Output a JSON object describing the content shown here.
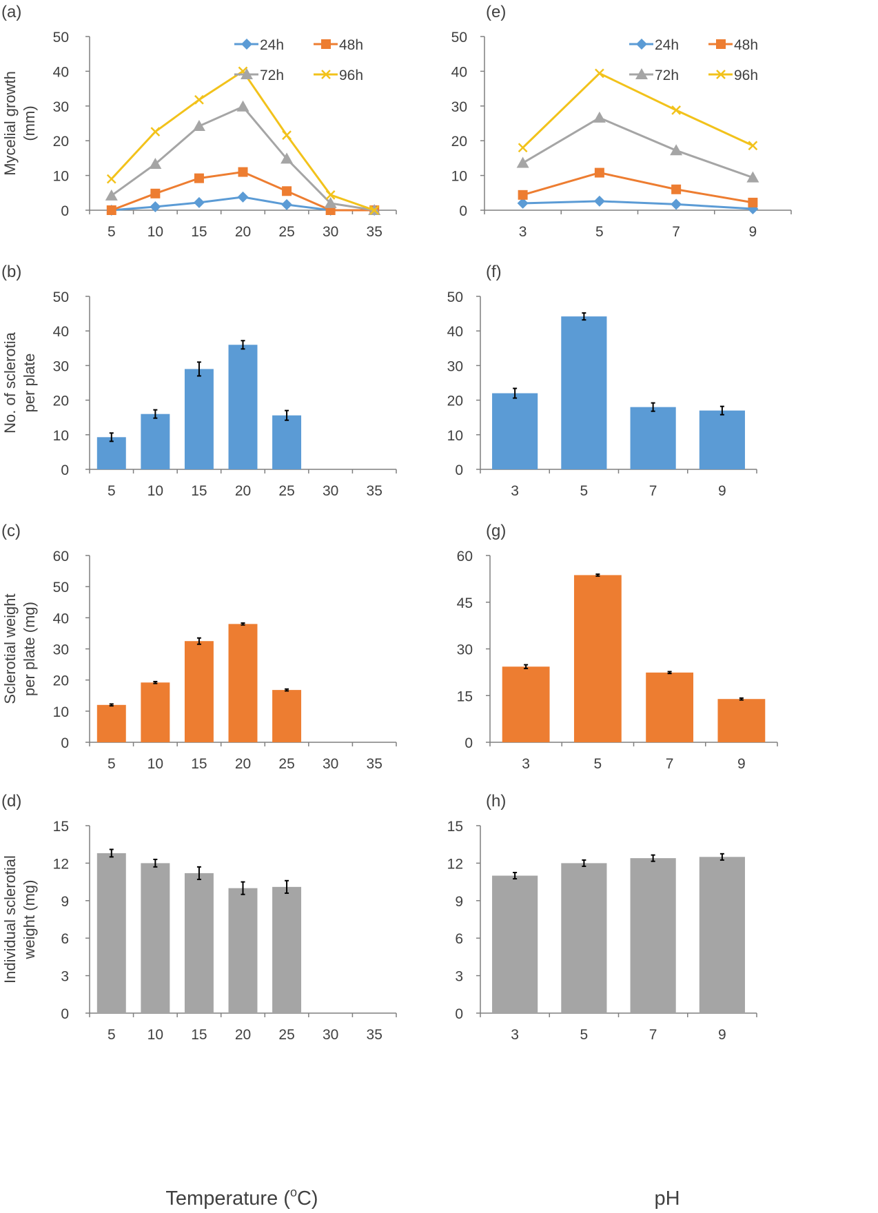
{
  "figure": {
    "xlabel_left": "Temperature (°C)",
    "xlabel_left_main": "Temperature (",
    "xlabel_left_sup": "o",
    "xlabel_left_end": "C)",
    "xlabel_right": "pH"
  },
  "colors": {
    "blue": "#5b9bd5",
    "orange": "#ed7d31",
    "gray": "#a5a5a5",
    "yellow": "#f2c21b",
    "axis": "#7f7f7f",
    "text": "#404040"
  },
  "chart_data": [
    {
      "id": "a",
      "panel_label": "(a)",
      "type": "line",
      "ylabel": [
        "Mycelial growth",
        "(mm)"
      ],
      "categories": [
        "5",
        "10",
        "15",
        "20",
        "25",
        "30",
        "35"
      ],
      "ylim": [
        0,
        50
      ],
      "yticks": [
        0,
        10,
        20,
        30,
        40,
        50
      ],
      "grid": false,
      "legend_placement": "top-right",
      "series": [
        {
          "name": "24h",
          "color": "#5b9bd5",
          "marker": "diamond",
          "values": [
            0,
            1,
            2.2,
            3.8,
            1.6,
            0,
            0
          ]
        },
        {
          "name": "48h",
          "color": "#ed7d31",
          "marker": "square",
          "values": [
            0,
            4.8,
            9.2,
            11,
            5.5,
            0,
            0
          ]
        },
        {
          "name": "72h",
          "color": "#a5a5a5",
          "marker": "triangle",
          "values": [
            4.2,
            13.3,
            24.2,
            29.8,
            14.8,
            2,
            0
          ]
        },
        {
          "name": "96h",
          "color": "#f2c21b",
          "marker": "x",
          "values": [
            9,
            22.6,
            31.8,
            40,
            21.6,
            4.4,
            0
          ]
        }
      ]
    },
    {
      "id": "b",
      "panel_label": "(b)",
      "type": "bar",
      "ylabel": [
        "No. of sclerotia",
        "per plate"
      ],
      "categories": [
        "5",
        "10",
        "15",
        "20",
        "25",
        "30",
        "35"
      ],
      "values": [
        9.3,
        16,
        29,
        36,
        15.6,
        0,
        0
      ],
      "errors": [
        1.2,
        1.2,
        2,
        1.2,
        1.4,
        0,
        0
      ],
      "color": "#5b9bd5",
      "ylim": [
        0,
        50
      ],
      "yticks": [
        0,
        10,
        20,
        30,
        40,
        50
      ],
      "grid": false
    },
    {
      "id": "c",
      "panel_label": "(c)",
      "type": "bar",
      "ylabel": [
        "Sclerotial weight",
        "per plate (mg)"
      ],
      "categories": [
        "5",
        "10",
        "15",
        "20",
        "25",
        "30",
        "35"
      ],
      "values": [
        12,
        19.2,
        32.5,
        38,
        16.8,
        0,
        0
      ],
      "errors": [
        0.3,
        0.3,
        1,
        0.3,
        0.3,
        0,
        0
      ],
      "color": "#ed7d31",
      "ylim": [
        0,
        60
      ],
      "yticks": [
        0,
        10,
        20,
        30,
        40,
        50,
        60
      ],
      "grid": false
    },
    {
      "id": "d",
      "panel_label": "(d)",
      "type": "bar",
      "ylabel": [
        "Individual sclerotial",
        "weight (mg)"
      ],
      "categories": [
        "5",
        "10",
        "15",
        "20",
        "25",
        "30",
        "35"
      ],
      "values": [
        12.8,
        12,
        11.2,
        10,
        10.1,
        0,
        0
      ],
      "errors": [
        0.3,
        0.3,
        0.5,
        0.5,
        0.5,
        0,
        0
      ],
      "color": "#a5a5a5",
      "ylim": [
        0,
        15
      ],
      "yticks": [
        0,
        3,
        6,
        9,
        12,
        15
      ],
      "grid": false
    },
    {
      "id": "e",
      "panel_label": "(e)",
      "type": "line",
      "ylabel": [],
      "categories": [
        "3",
        "5",
        "7",
        "9"
      ],
      "ylim": [
        0,
        50
      ],
      "yticks": [
        0,
        10,
        20,
        30,
        40,
        50
      ],
      "grid": false,
      "legend_placement": "top-right",
      "series": [
        {
          "name": "24h",
          "color": "#5b9bd5",
          "marker": "diamond",
          "values": [
            2,
            2.6,
            1.7,
            0.4
          ]
        },
        {
          "name": "48h",
          "color": "#ed7d31",
          "marker": "square",
          "values": [
            4.4,
            10.8,
            6,
            2.2
          ]
        },
        {
          "name": "72h",
          "color": "#a5a5a5",
          "marker": "triangle",
          "values": [
            13.6,
            26.6,
            17.2,
            9.4
          ]
        },
        {
          "name": "96h",
          "color": "#f2c21b",
          "marker": "x",
          "values": [
            18,
            39.4,
            28.8,
            18.6
          ]
        }
      ]
    },
    {
      "id": "f",
      "panel_label": "(f)",
      "type": "bar",
      "ylabel": [],
      "categories": [
        "3",
        "5",
        "7",
        "9"
      ],
      "values": [
        22,
        44.2,
        18,
        17
      ],
      "errors": [
        1.4,
        1,
        1.2,
        1.2
      ],
      "color": "#5b9bd5",
      "ylim": [
        0,
        50
      ],
      "yticks": [
        0,
        10,
        20,
        30,
        40,
        50
      ],
      "grid": false
    },
    {
      "id": "g",
      "panel_label": "(g)",
      "type": "bar",
      "ylabel": [],
      "categories": [
        "3",
        "5",
        "7",
        "9"
      ],
      "values": [
        24.3,
        53.7,
        22.4,
        13.9
      ],
      "errors": [
        0.6,
        0.3,
        0.3,
        0.3
      ],
      "color": "#ed7d31",
      "ylim": [
        0,
        60
      ],
      "yticks": [
        0,
        15,
        30,
        45,
        60
      ],
      "grid": false
    },
    {
      "id": "h",
      "panel_label": "(h)",
      "type": "bar",
      "ylabel": [],
      "categories": [
        "3",
        "5",
        "7",
        "9"
      ],
      "values": [
        11,
        12,
        12.4,
        12.5
      ],
      "errors": [
        0.25,
        0.25,
        0.25,
        0.25
      ],
      "color": "#a5a5a5",
      "ylim": [
        0,
        15
      ],
      "yticks": [
        0,
        3,
        6,
        9,
        12,
        15
      ],
      "grid": false
    }
  ]
}
